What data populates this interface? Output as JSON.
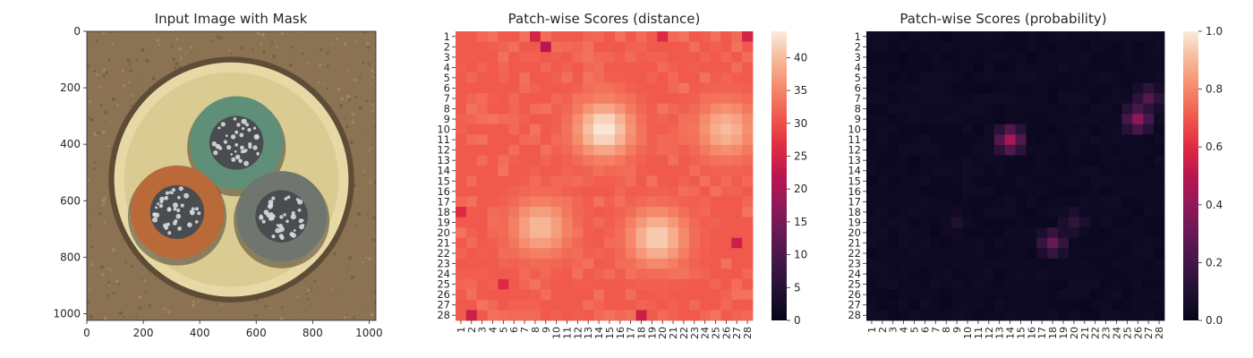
{
  "chart_data": [
    {
      "type": "image",
      "title": "Input Image with Mask",
      "x_ticks": [
        "0",
        "200",
        "400",
        "600",
        "800",
        "1000"
      ],
      "y_ticks": [
        "0",
        "200",
        "400",
        "600",
        "800",
        "1000"
      ],
      "xlim": [
        0,
        1024
      ],
      "ylim": [
        1024,
        0
      ],
      "content": "cable cross-section: three wires (green, brown, grey) inside cream sheath on brown ground",
      "colors": {
        "ground": "#8a7252",
        "sheath": "#e6d9a6",
        "green": "#5f8f79",
        "brown": "#b96a38",
        "grey": "#6f766f",
        "metal": "#d7dcdf"
      }
    },
    {
      "type": "heatmap",
      "title": "Patch-wise Scores (distance)",
      "rows": [
        "1",
        "2",
        "3",
        "4",
        "5",
        "6",
        "7",
        "8",
        "9",
        "10",
        "11",
        "12",
        "13",
        "14",
        "15",
        "16",
        "17",
        "18",
        "19",
        "20",
        "21",
        "22",
        "23",
        "24",
        "25",
        "26",
        "27",
        "28"
      ],
      "cols": [
        "1",
        "2",
        "3",
        "4",
        "5",
        "6",
        "7",
        "8",
        "9",
        "10",
        "11",
        "12",
        "13",
        "14",
        "15",
        "16",
        "17",
        "18",
        "19",
        "20",
        "21",
        "22",
        "23",
        "24",
        "25",
        "26",
        "27",
        "28"
      ],
      "colorbar_ticks": [
        "0",
        "5",
        "10",
        "15",
        "20",
        "25",
        "30",
        "35",
        "40"
      ],
      "vmin": 0,
      "vmax": 44,
      "colormap": "rocket",
      "base_value": 31,
      "hotspots": [
        {
          "row": 10,
          "col": 14.5,
          "peak": 44
        },
        {
          "row": 10,
          "col": 26,
          "peak": 40
        },
        {
          "row": 19.5,
          "col": 8.5,
          "peak": 40
        },
        {
          "row": 20.5,
          "col": 19.5,
          "peak": 42
        }
      ],
      "lowspots": [
        {
          "row": 2,
          "col": 9,
          "value": 22
        },
        {
          "row": 1,
          "col": 8,
          "value": 25
        },
        {
          "row": 1,
          "col": 20,
          "value": 26
        },
        {
          "row": 1,
          "col": 28,
          "value": 25
        },
        {
          "row": 21,
          "col": 27,
          "value": 24
        },
        {
          "row": 18,
          "col": 1,
          "value": 26
        },
        {
          "row": 28,
          "col": 2,
          "value": 24
        },
        {
          "row": 28,
          "col": 18,
          "value": 24
        },
        {
          "row": 25,
          "col": 5,
          "value": 26
        }
      ]
    },
    {
      "type": "heatmap",
      "title": "Patch-wise Scores (probability)",
      "rows": [
        "1",
        "2",
        "3",
        "4",
        "5",
        "6",
        "7",
        "8",
        "9",
        "10",
        "11",
        "12",
        "13",
        "14",
        "15",
        "16",
        "17",
        "18",
        "19",
        "20",
        "21",
        "22",
        "23",
        "24",
        "25",
        "26",
        "27",
        "28"
      ],
      "cols": [
        "1",
        "2",
        "3",
        "4",
        "5",
        "6",
        "7",
        "8",
        "9",
        "10",
        "11",
        "12",
        "13",
        "14",
        "15",
        "16",
        "17",
        "18",
        "19",
        "20",
        "21",
        "22",
        "23",
        "24",
        "25",
        "26",
        "27",
        "28"
      ],
      "colorbar_ticks": [
        "0.0",
        "0.2",
        "0.4",
        "0.6",
        "0.8",
        "1.0"
      ],
      "vmin": 0,
      "vmax": 1,
      "colormap": "rocket",
      "base_value": 0.02,
      "hotspots": [
        {
          "row": 11,
          "col": 14,
          "peak": 0.45
        },
        {
          "row": 9,
          "col": 26,
          "peak": 0.4
        },
        {
          "row": 7,
          "col": 27,
          "peak": 0.25
        },
        {
          "row": 21,
          "col": 18,
          "peak": 0.3
        },
        {
          "row": 19,
          "col": 20,
          "peak": 0.15
        },
        {
          "row": 19,
          "col": 9,
          "peak": 0.1
        }
      ]
    }
  ]
}
